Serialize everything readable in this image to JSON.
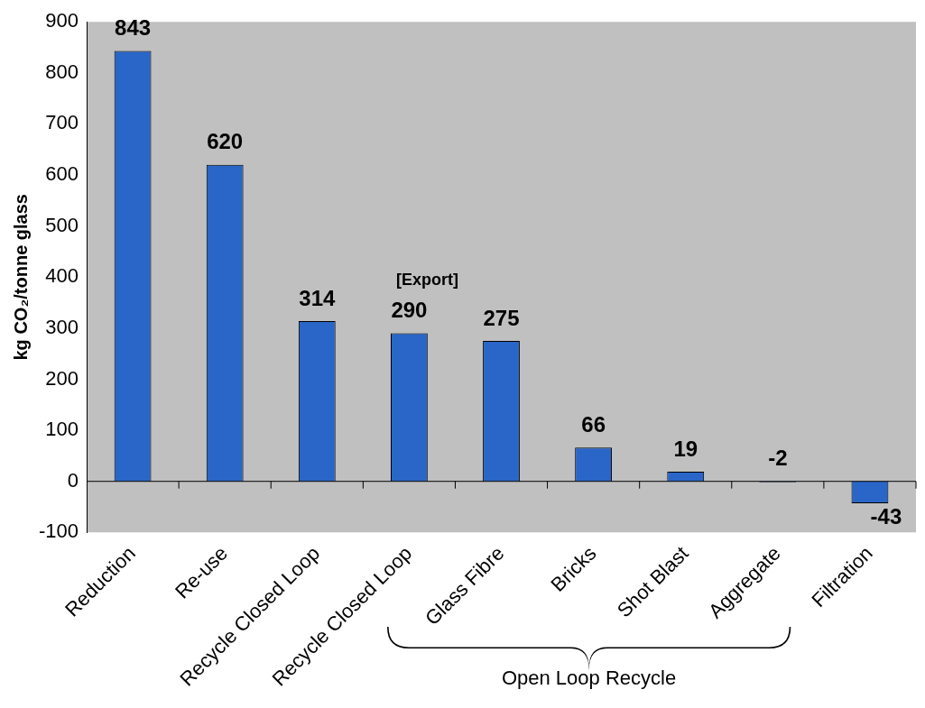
{
  "chart_data": {
    "type": "bar",
    "ylabel": "kg CO₂/tonne glass",
    "categories": [
      "Reduction",
      "Re-use",
      "Recycle Closed Loop",
      "Recycle Closed Loop",
      "Glass Fibre",
      "Bricks",
      "Shot Blast",
      "Aggregate",
      "Filtration"
    ],
    "values": [
      843,
      620,
      314,
      290,
      275,
      66,
      19,
      -2,
      -43
    ],
    "color": "#2a66c8",
    "ylim": [
      -100,
      900
    ],
    "yticks": [
      -100,
      0,
      100,
      200,
      300,
      400,
      500,
      600,
      700,
      800,
      900
    ],
    "data_labels": true,
    "annotations": [
      "[Export]",
      "Open Loop Recycle"
    ]
  }
}
